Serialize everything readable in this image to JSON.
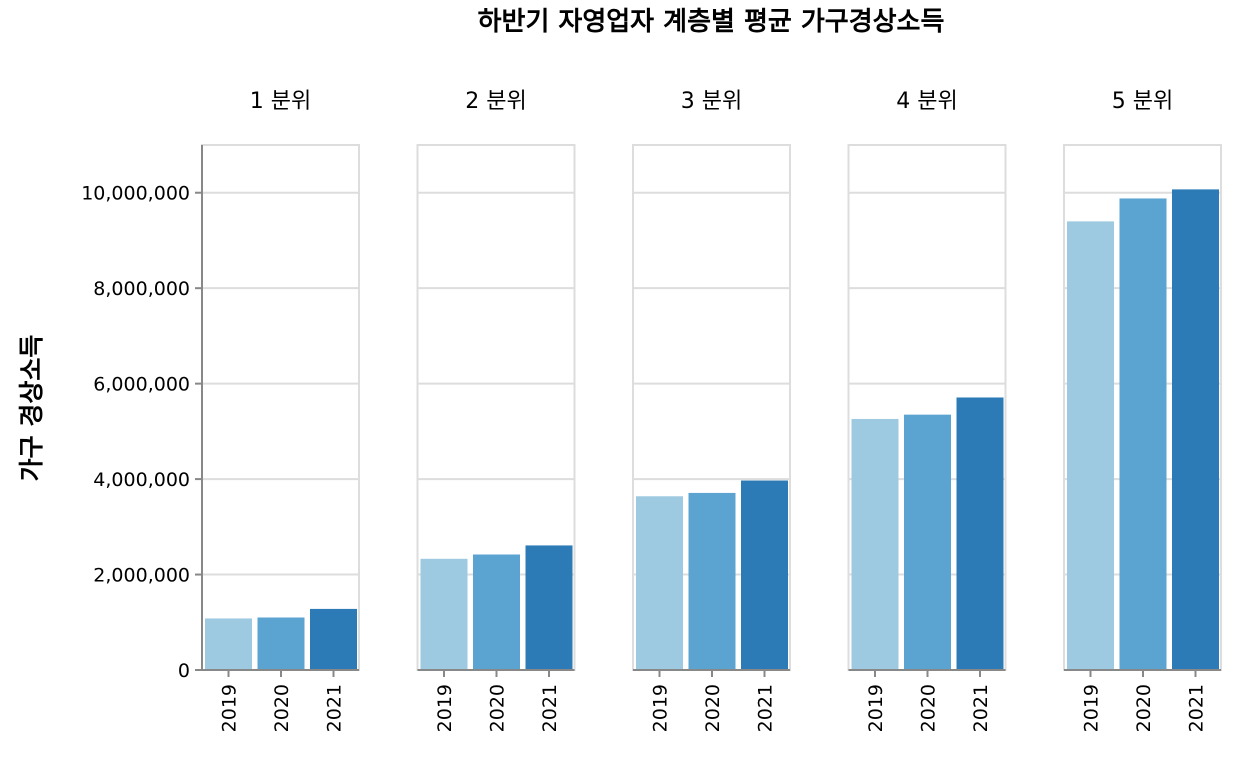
{
  "chart_data": {
    "type": "bar",
    "title": "하반기 자영업자 계층별 평균 가구경상소득",
    "ylabel": "가구 경상소득",
    "xlabel": "",
    "ylim": [
      0,
      11000000
    ],
    "yticks": [
      0,
      2000000,
      4000000,
      6000000,
      8000000,
      10000000
    ],
    "ytick_labels": [
      "0",
      "2,000,000",
      "4,000,000",
      "6,000,000",
      "8,000,000",
      "10,000,000"
    ],
    "grid": true,
    "categories": [
      "2019",
      "2020",
      "2021"
    ],
    "category_colors": [
      "#9ecae1",
      "#5ba3d0",
      "#2c7bb6"
    ],
    "facets": [
      {
        "label": "1 분위",
        "values": [
          1080000,
          1100000,
          1280000
        ]
      },
      {
        "label": "2 분위",
        "values": [
          2330000,
          2420000,
          2610000
        ]
      },
      {
        "label": "3 분위",
        "values": [
          3640000,
          3710000,
          3970000
        ]
      },
      {
        "label": "4 분위",
        "values": [
          5260000,
          5350000,
          5710000
        ]
      },
      {
        "label": "5 분위",
        "values": [
          9400000,
          9880000,
          10070000
        ]
      }
    ]
  }
}
